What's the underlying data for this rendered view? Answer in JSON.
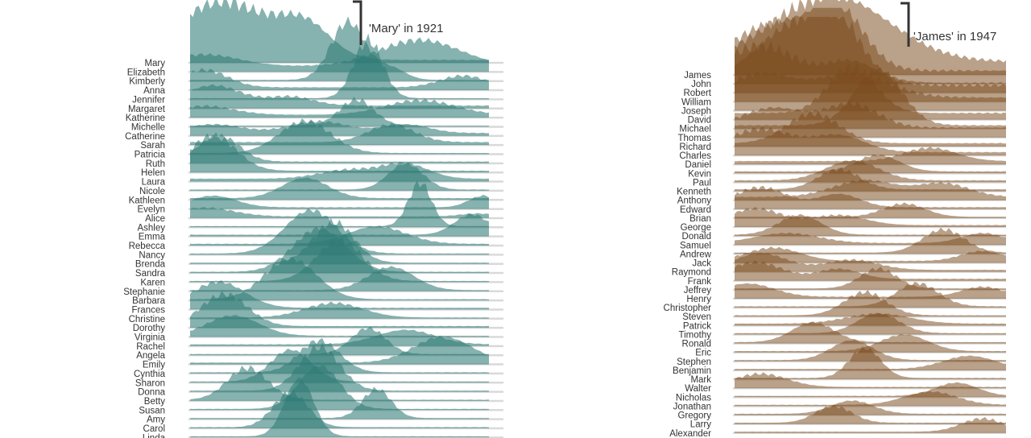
{
  "chart_data": [
    {
      "type": "area",
      "subtype": "ridgeline",
      "title": "",
      "xlabel": "",
      "ylabel": "",
      "grid": false,
      "legend": "none",
      "color": "#2e7a76",
      "x_range": [
        1910,
        2014
      ],
      "annotation": {
        "text": "'Mary' in 1921",
        "year": 1921
      },
      "series": [
        {
          "name": "Mary",
          "peaks": [
            [
              1921,
              1.0,
              16
            ],
            [
              1950,
              0.55,
              9
            ]
          ],
          "base": 0.05
        },
        {
          "name": "Elizabeth",
          "peaks": [
            [
              1915,
              0.2,
              12
            ],
            [
              1990,
              0.45,
              14
            ]
          ],
          "base": 0.1
        },
        {
          "name": "Kimberly",
          "peaks": [
            [
              1965,
              1.0,
              6
            ],
            [
              1980,
              0.2,
              5
            ]
          ],
          "base": 0.02
        },
        {
          "name": "Anna",
          "peaks": [
            [
              1915,
              0.3,
              8
            ],
            [
              2005,
              0.2,
              8
            ]
          ],
          "base": 0.05
        },
        {
          "name": "Jennifer",
          "peaks": [
            [
              1972,
              1.0,
              5
            ]
          ],
          "base": 0.02
        },
        {
          "name": "Margaret",
          "peaks": [
            [
              1918,
              0.35,
              10
            ],
            [
              1945,
              0.15,
              8
            ]
          ],
          "base": 0.05
        },
        {
          "name": "Katherine",
          "peaks": [
            [
              1915,
              0.15,
              10
            ],
            [
              1990,
              0.25,
              12
            ]
          ],
          "base": 0.05
        },
        {
          "name": "Michelle",
          "peaks": [
            [
              1968,
              0.45,
              6
            ]
          ],
          "base": 0.02
        },
        {
          "name": "Catherine",
          "peaks": [
            [
              1918,
              0.15,
              10
            ],
            [
              1955,
              0.2,
              10
            ],
            [
              1985,
              0.15,
              8
            ]
          ],
          "base": 0.05
        },
        {
          "name": "Sarah",
          "peaks": [
            [
              1980,
              0.3,
              8
            ]
          ],
          "base": 0.05
        },
        {
          "name": "Patricia",
          "peaks": [
            [
              1950,
              0.55,
              9
            ]
          ],
          "base": 0.02
        },
        {
          "name": "Ruth",
          "peaks": [
            [
              1920,
              0.45,
              7
            ]
          ],
          "base": 0.03
        },
        {
          "name": "Helen",
          "peaks": [
            [
              1918,
              0.6,
              8
            ]
          ],
          "base": 0.03
        },
        {
          "name": "Laura",
          "peaks": [
            [
              1965,
              0.15,
              10
            ],
            [
              1985,
              0.25,
              8
            ]
          ],
          "base": 0.05
        },
        {
          "name": "Nicole",
          "peaks": [
            [
              1985,
              0.45,
              6
            ]
          ],
          "base": 0.02
        },
        {
          "name": "Kathleen",
          "peaks": [
            [
              1950,
              0.35,
              8
            ]
          ],
          "base": 0.03
        },
        {
          "name": "Evelyn",
          "peaks": [
            [
              1918,
              0.2,
              8
            ],
            [
              2012,
              0.2,
              5
            ]
          ],
          "base": 0.03
        },
        {
          "name": "Alice",
          "peaks": [
            [
              1915,
              0.15,
              10
            ],
            [
              2010,
              0.05,
              6
            ]
          ],
          "base": 0.03
        },
        {
          "name": "Ashley",
          "peaks": [
            [
              1990,
              0.75,
              4
            ]
          ],
          "base": 0.02
        },
        {
          "name": "Emma",
          "peaks": [
            [
              2008,
              0.35,
              6
            ]
          ],
          "base": 0.03
        },
        {
          "name": "Rebecca",
          "peaks": [
            [
              1975,
              0.3,
              10
            ]
          ],
          "base": 0.03
        },
        {
          "name": "Nancy",
          "peaks": [
            [
              1952,
              0.75,
              9
            ]
          ],
          "base": 0.02
        },
        {
          "name": "Brenda",
          "peaks": [
            [
              1960,
              0.7,
              7
            ]
          ],
          "base": 0.02
        },
        {
          "name": "Sandra",
          "peaks": [
            [
              1955,
              0.75,
              9
            ]
          ],
          "base": 0.02
        },
        {
          "name": "Karen",
          "peaks": [
            [
              1962,
              0.7,
              8
            ]
          ],
          "base": 0.02
        },
        {
          "name": "Stephanie",
          "peaks": [
            [
              1980,
              0.4,
              8
            ]
          ],
          "base": 0.02
        },
        {
          "name": "Barbara",
          "peaks": [
            [
              1945,
              0.7,
              9
            ]
          ],
          "base": 0.02
        },
        {
          "name": "Frances",
          "peaks": [
            [
              1920,
              0.45,
              9
            ]
          ],
          "base": 0.03
        },
        {
          "name": "Christine",
          "peaks": [
            [
              1960,
              0.25,
              10
            ]
          ],
          "base": 0.02
        },
        {
          "name": "Dorothy",
          "peaks": [
            [
              1922,
              0.55,
              8
            ]
          ],
          "base": 0.03
        },
        {
          "name": "Virginia",
          "peaks": [
            [
              1925,
              0.35,
              9
            ]
          ],
          "base": 0.02
        },
        {
          "name": "Rachel",
          "peaks": [
            [
              1985,
              0.25,
              10
            ]
          ],
          "base": 0.03
        },
        {
          "name": "Angela",
          "peaks": [
            [
              1972,
              0.45,
              6
            ]
          ],
          "base": 0.02
        },
        {
          "name": "Emily",
          "peaks": [
            [
              1998,
              0.45,
              10
            ]
          ],
          "base": 0.03
        },
        {
          "name": "Cynthia",
          "peaks": [
            [
              1955,
              0.55,
              7
            ]
          ],
          "base": 0.02
        },
        {
          "name": "Sharon",
          "peaks": [
            [
              1945,
              0.55,
              7
            ]
          ],
          "base": 0.02
        },
        {
          "name": "Donna",
          "peaks": [
            [
              1955,
              0.75,
              7
            ]
          ],
          "base": 0.02
        },
        {
          "name": "Betty",
          "peaks": [
            [
              1930,
              0.55,
              7
            ]
          ],
          "base": 0.02
        },
        {
          "name": "Susan",
          "peaks": [
            [
              1955,
              0.75,
              7
            ]
          ],
          "base": 0.02
        },
        {
          "name": "Amy",
          "peaks": [
            [
              1975,
              0.5,
              5
            ]
          ],
          "base": 0.02
        },
        {
          "name": "Carol",
          "peaks": [
            [
              1945,
              0.6,
              6
            ]
          ],
          "base": 0.02
        },
        {
          "name": "Linda",
          "peaks": [
            [
              1948,
              1.0,
              5
            ]
          ],
          "base": 0.02
        }
      ]
    },
    {
      "type": "area",
      "subtype": "ridgeline",
      "title": "",
      "xlabel": "",
      "ylabel": "",
      "grid": false,
      "legend": "none",
      "color": "#7a4a1c",
      "x_range": [
        1910,
        2014
      ],
      "annotation": {
        "text": "'James' in 1947",
        "year": 1947
      },
      "series": [
        {
          "name": "James",
          "peaks": [
            [
              1947,
              1.0,
              22
            ]
          ],
          "base": 0.2
        },
        {
          "name": "John",
          "peaks": [
            [
              1925,
              0.7,
              16
            ],
            [
              1950,
              0.8,
              10
            ]
          ],
          "base": 0.2
        },
        {
          "name": "Robert",
          "peaks": [
            [
              1935,
              0.9,
              16
            ],
            [
              1950,
              0.5,
              8
            ]
          ],
          "base": 0.15
        },
        {
          "name": "William",
          "peaks": [
            [
              1920,
              0.6,
              14
            ],
            [
              1955,
              0.35,
              10
            ]
          ],
          "base": 0.25
        },
        {
          "name": "Joseph",
          "peaks": [
            [
              1920,
              0.35,
              12
            ],
            [
              1955,
              0.35,
              14
            ]
          ],
          "base": 0.2
        },
        {
          "name": "David",
          "peaks": [
            [
              1955,
              0.7,
              9
            ]
          ],
          "base": 0.1
        },
        {
          "name": "Michael",
          "peaks": [
            [
              1965,
              0.85,
              9
            ]
          ],
          "base": 0.05
        },
        {
          "name": "Thomas",
          "peaks": [
            [
              1925,
              0.3,
              12
            ],
            [
              1955,
              0.35,
              10
            ]
          ],
          "base": 0.15
        },
        {
          "name": "Richard",
          "peaks": [
            [
              1940,
              0.45,
              10
            ]
          ],
          "base": 0.05
        },
        {
          "name": "Charles",
          "peaks": [
            [
              1920,
              0.35,
              12
            ],
            [
              1950,
              0.25,
              10
            ]
          ],
          "base": 0.05
        },
        {
          "name": "Daniel",
          "peaks": [
            [
              1985,
              0.2,
              10
            ]
          ],
          "base": 0.05
        },
        {
          "name": "Kevin",
          "peaks": [
            [
              1965,
              0.25,
              8
            ]
          ],
          "base": 0.03
        },
        {
          "name": "Paul",
          "peaks": [
            [
              1955,
              0.3,
              10
            ]
          ],
          "base": 0.03
        },
        {
          "name": "Kenneth",
          "peaks": [
            [
              1950,
              0.3,
              8
            ]
          ],
          "base": 0.03
        },
        {
          "name": "Anthony",
          "peaks": [
            [
              1960,
              0.25,
              12
            ],
            [
              1990,
              0.2,
              10
            ]
          ],
          "base": 0.05
        },
        {
          "name": "Edward",
          "peaks": [
            [
              1920,
              0.3,
              10
            ],
            [
              1950,
              0.2,
              8
            ]
          ],
          "base": 0.03
        },
        {
          "name": "Brian",
          "peaks": [
            [
              1975,
              0.2,
              8
            ]
          ],
          "base": 0.02
        },
        {
          "name": "George",
          "peaks": [
            [
              1918,
              0.25,
              10
            ],
            [
              1950,
              0.15,
              10
            ]
          ],
          "base": 0.03
        },
        {
          "name": "Donald",
          "peaks": [
            [
              1935,
              0.3,
              8
            ]
          ],
          "base": 0.02
        },
        {
          "name": "Samuel",
          "peaks": [
            [
              1930,
              0.15,
              12
            ],
            [
              2005,
              0.15,
              8
            ]
          ],
          "base": 0.03
        },
        {
          "name": "Andrew",
          "peaks": [
            [
              1990,
              0.35,
              8
            ]
          ],
          "base": 0.02
        },
        {
          "name": "Jack",
          "peaks": [
            [
              1925,
              0.2,
              10
            ],
            [
              2005,
              0.15,
              8
            ]
          ],
          "base": 0.03
        },
        {
          "name": "Raymond",
          "peaks": [
            [
              1920,
              0.25,
              10
            ],
            [
              1955,
              0.15,
              10
            ]
          ],
          "base": 0.03
        },
        {
          "name": "Frank",
          "peaks": [
            [
              1918,
              0.25,
              10
            ],
            [
              1950,
              0.15,
              8
            ]
          ],
          "base": 0.03
        },
        {
          "name": "Jeffrey",
          "peaks": [
            [
              1965,
              0.3,
              7
            ]
          ],
          "base": 0.02
        },
        {
          "name": "Henry",
          "peaks": [
            [
              1915,
              0.2,
              10
            ],
            [
              2005,
              0.15,
              8
            ]
          ],
          "base": 0.03
        },
        {
          "name": "Christopher",
          "peaks": [
            [
              1980,
              0.35,
              8
            ]
          ],
          "base": 0.02
        },
        {
          "name": "Steven",
          "peaks": [
            [
              1960,
              0.35,
              8
            ]
          ],
          "base": 0.02
        },
        {
          "name": "Patrick",
          "peaks": [
            [
              1965,
              0.15,
              12
            ]
          ],
          "base": 0.03
        },
        {
          "name": "Timothy",
          "peaks": [
            [
              1965,
              0.3,
              8
            ]
          ],
          "base": 0.02
        },
        {
          "name": "Ronald",
          "peaks": [
            [
              1940,
              0.3,
              8
            ]
          ],
          "base": 0.02
        },
        {
          "name": "Eric",
          "peaks": [
            [
              1975,
              0.25,
              9
            ]
          ],
          "base": 0.02
        },
        {
          "name": "Stephen",
          "peaks": [
            [
              1955,
              0.3,
              8
            ]
          ],
          "base": 0.02
        },
        {
          "name": "Benjamin",
          "peaks": [
            [
              2000,
              0.2,
              10
            ]
          ],
          "base": 0.02
        },
        {
          "name": "Mark",
          "peaks": [
            [
              1960,
              0.45,
              6
            ]
          ],
          "base": 0.02
        },
        {
          "name": "Walter",
          "peaks": [
            [
              1920,
              0.2,
              10
            ]
          ],
          "base": 0.02
        },
        {
          "name": "Nicholas",
          "peaks": [
            [
              1995,
              0.2,
              8
            ]
          ],
          "base": 0.02
        },
        {
          "name": "Jonathan",
          "peaks": [
            [
              1985,
              0.2,
              10
            ]
          ],
          "base": 0.02
        },
        {
          "name": "Gregory",
          "peaks": [
            [
              1955,
              0.2,
              8
            ]
          ],
          "base": 0.02
        },
        {
          "name": "Larry",
          "peaks": [
            [
              1948,
              0.25,
              7
            ]
          ],
          "base": 0.02
        },
        {
          "name": "Alexander",
          "peaks": [
            [
              2005,
              0.2,
              8
            ]
          ],
          "base": 0.02
        }
      ]
    }
  ]
}
